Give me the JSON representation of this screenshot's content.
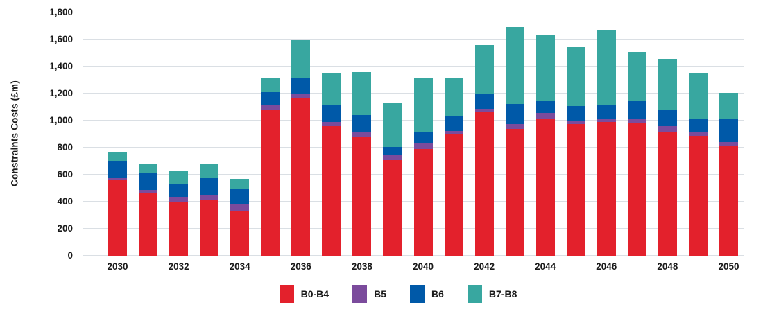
{
  "chart_data": {
    "type": "bar",
    "stacked": true,
    "title": "",
    "xlabel": "",
    "ylabel": "Constraints Costs (£m)",
    "ylim": [
      0,
      1800
    ],
    "ytick_step": 200,
    "y_tick_labels": [
      "0",
      "200",
      "400",
      "600",
      "800",
      "1,000",
      "1,200",
      "1,400",
      "1,600",
      "1,800"
    ],
    "grid": "horizontal",
    "legend_position": "bottom",
    "categories": [
      2030,
      2031,
      2032,
      2033,
      2034,
      2035,
      2036,
      2037,
      2038,
      2039,
      2040,
      2041,
      2042,
      2043,
      2044,
      2045,
      2046,
      2047,
      2048,
      2049,
      2050
    ],
    "x_tick_labels": [
      "2030",
      "2032",
      "2034",
      "2036",
      "2038",
      "2040",
      "2042",
      "2044",
      "2046",
      "2048",
      "2050"
    ],
    "series": [
      {
        "name": "B0-B4",
        "color": "#e3212c",
        "values": [
          560,
          462,
          398,
          418,
          335,
          1077,
          1167,
          959,
          880,
          708,
          791,
          897,
          1065,
          940,
          1013,
          976,
          991,
          980,
          916,
          889,
          817
        ]
      },
      {
        "name": "B5",
        "color": "#7b4b9c",
        "values": [
          17,
          27,
          38,
          34,
          44,
          39,
          29,
          32,
          40,
          35,
          40,
          26,
          22,
          34,
          43,
          20,
          17,
          28,
          41,
          31,
          24
        ]
      },
      {
        "name": "B6",
        "color": "#0059a8",
        "values": [
          128,
          127,
          99,
          125,
          115,
          94,
          117,
          125,
          123,
          62,
          89,
          113,
          106,
          147,
          94,
          112,
          108,
          139,
          122,
          97,
          167
        ]
      },
      {
        "name": "B7-B8",
        "color": "#38a7a0",
        "values": [
          66,
          62,
          92,
          103,
          75,
          103,
          282,
          239,
          318,
          325,
          394,
          277,
          367,
          571,
          482,
          435,
          550,
          361,
          379,
          330,
          195
        ]
      }
    ],
    "colors": {
      "gridline": "#dadfe4",
      "text": "#1a1a1a",
      "background": "#ffffff"
    }
  }
}
